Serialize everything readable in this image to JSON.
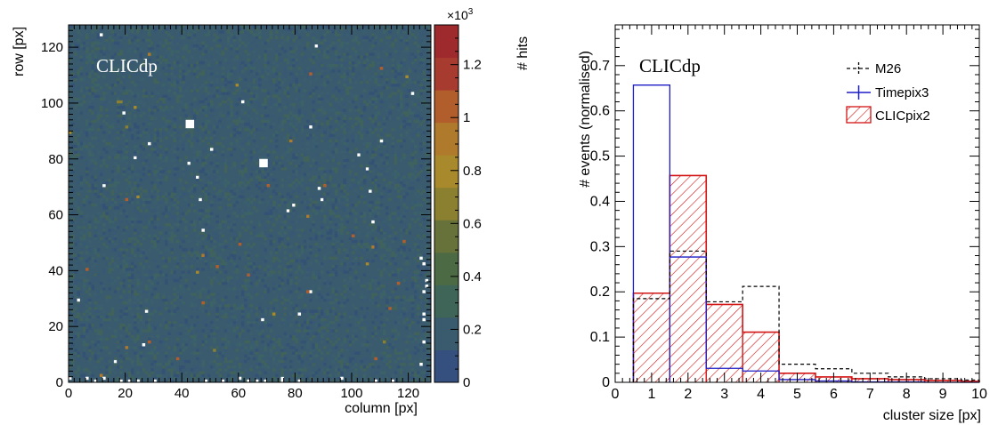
{
  "chart_data": [
    {
      "type": "heatmap",
      "xlabel": "column [px]",
      "ylabel": "row [px]",
      "zlabel": "# hits",
      "z_multiplier_label": "×10",
      "z_multiplier_exp": "3",
      "watermark": "CLICdp",
      "xlim": [
        0,
        128
      ],
      "ylim": [
        0,
        128
      ],
      "zlim": [
        0,
        1.35
      ],
      "x_ticks": [
        "0",
        "20",
        "40",
        "60",
        "80",
        "100",
        "120"
      ],
      "y_ticks": [
        "0",
        "20",
        "40",
        "60",
        "80",
        "100",
        "120"
      ],
      "z_ticks": [
        "0",
        "0.2",
        "0.4",
        "0.6",
        "0.8",
        "1",
        "1.2"
      ],
      "background_level": 0.2,
      "colors": {
        "scale": [
          "#35507e",
          "#3a5b6e",
          "#3e6558",
          "#4c6a44",
          "#66723a",
          "#8a8030",
          "#a88a2c",
          "#b07a2c",
          "#b25e2c",
          "#a83b2f",
          "#9e2a2e"
        ]
      },
      "dead_pixels": [
        [
          42,
          92
        ],
        [
          68,
          78
        ]
      ],
      "hot_pixels": [
        [
          6,
          40
        ],
        [
          52,
          41
        ],
        [
          63,
          38
        ],
        [
          70,
          70
        ],
        [
          60,
          49
        ],
        [
          118,
          50
        ],
        [
          100,
          52
        ],
        [
          47,
          28
        ],
        [
          28,
          14
        ],
        [
          108,
          8
        ],
        [
          113,
          26
        ],
        [
          38,
          8
        ],
        [
          116,
          35
        ],
        [
          84,
          32
        ],
        [
          20,
          65
        ],
        [
          90,
          70
        ],
        [
          110,
          112
        ],
        [
          85,
          110
        ]
      ]
    },
    {
      "type": "bar",
      "xlabel": "cluster size [px]",
      "ylabel": "# events (normalised)",
      "watermark": "CLICdp",
      "xlim": [
        0,
        10
      ],
      "ylim": [
        0,
        0.79
      ],
      "x_ticks": [
        "0",
        "1",
        "2",
        "3",
        "4",
        "5",
        "6",
        "7",
        "8",
        "9",
        "10"
      ],
      "y_ticks": [
        "0",
        "0.1",
        "0.2",
        "0.3",
        "0.4",
        "0.5",
        "0.6",
        "0.7"
      ],
      "bin_edges": [
        0.5,
        1.5,
        2.5,
        3.5,
        4.5,
        5.5,
        6.5,
        7.5,
        8.5,
        9.5,
        10
      ],
      "series": [
        {
          "name": "M26",
          "style": "dashed",
          "color": "#000000",
          "values": [
            0.185,
            0.29,
            0.178,
            0.212,
            0.04,
            0.03,
            0.02,
            0.012,
            0.008,
            0.005
          ]
        },
        {
          "name": "Timepix3",
          "style": "line",
          "color": "#1c1cc6",
          "values": [
            0.657,
            0.277,
            0.031,
            0.025,
            0.006,
            0.003,
            0.001,
            0.001,
            0.0,
            0.0
          ]
        },
        {
          "name": "CLICpix2",
          "style": "hatched",
          "color": "#d21414",
          "values": [
            0.197,
            0.457,
            0.172,
            0.111,
            0.02,
            0.012,
            0.008,
            0.006,
            0.004,
            0.002
          ]
        }
      ],
      "legend_position": "top-right"
    }
  ]
}
